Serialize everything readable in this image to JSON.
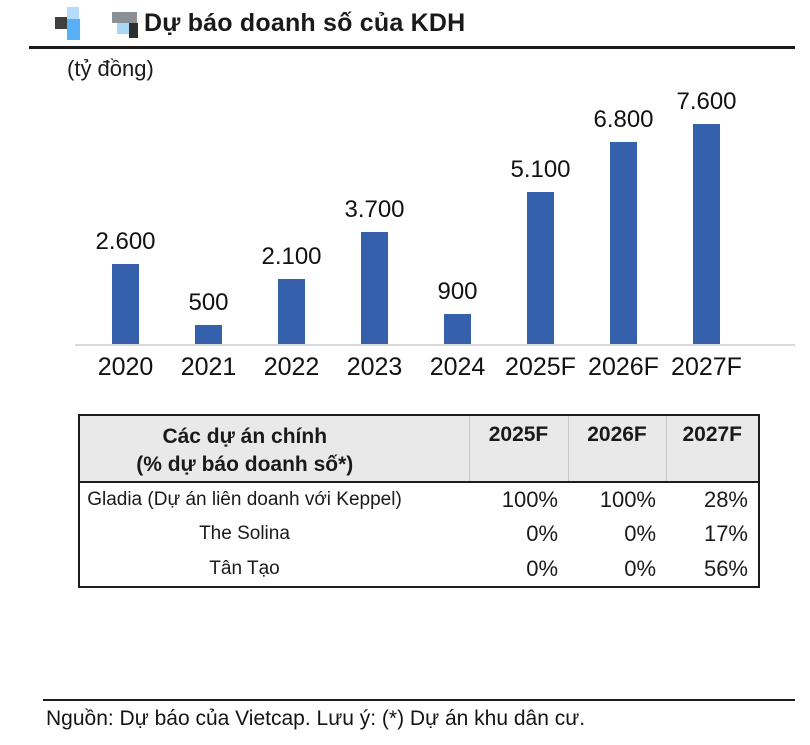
{
  "header": {
    "title": "Dự báo doanh số của KDH",
    "unit_label": "(tỷ đồng)"
  },
  "chart_data": {
    "type": "bar",
    "title": "Dự báo doanh số của KDH",
    "ylabel": "(tỷ đồng)",
    "categories": [
      "2020",
      "2021",
      "2022",
      "2023",
      "2024",
      "2025F",
      "2026F",
      "2027F"
    ],
    "values": [
      2600,
      500,
      2100,
      3700,
      900,
      5100,
      6800,
      7600
    ],
    "value_labels": [
      "2.600",
      "500",
      "2.100",
      "3.700",
      "900",
      "5.100",
      "6.800",
      "7.600"
    ],
    "ylim": [
      0,
      7600
    ],
    "grid": false,
    "legend": "none",
    "bar_color": "#3560AC",
    "axis_color": "#D9D9D9"
  },
  "table": {
    "header": {
      "name_line1": "Các dự án chính",
      "name_line2": "(% dự báo doanh số*)",
      "year_cols": [
        "2025F",
        "2026F",
        "2027F"
      ]
    },
    "rows": [
      {
        "name": "Gladia (Dự án liên doanh với Keppel)",
        "values": [
          "100%",
          "100%",
          "28%"
        ]
      },
      {
        "name": "The Solina",
        "values": [
          "0%",
          "0%",
          "17%"
        ]
      },
      {
        "name": "Tân Tạo",
        "values": [
          "0%",
          "0%",
          "56%"
        ]
      }
    ],
    "header_bg": "#E9E9E9"
  },
  "footer": {
    "source_note": "Nguồn: Dự báo của Vietcap. Lưu ý: (*) Dự án khu dân cư."
  }
}
